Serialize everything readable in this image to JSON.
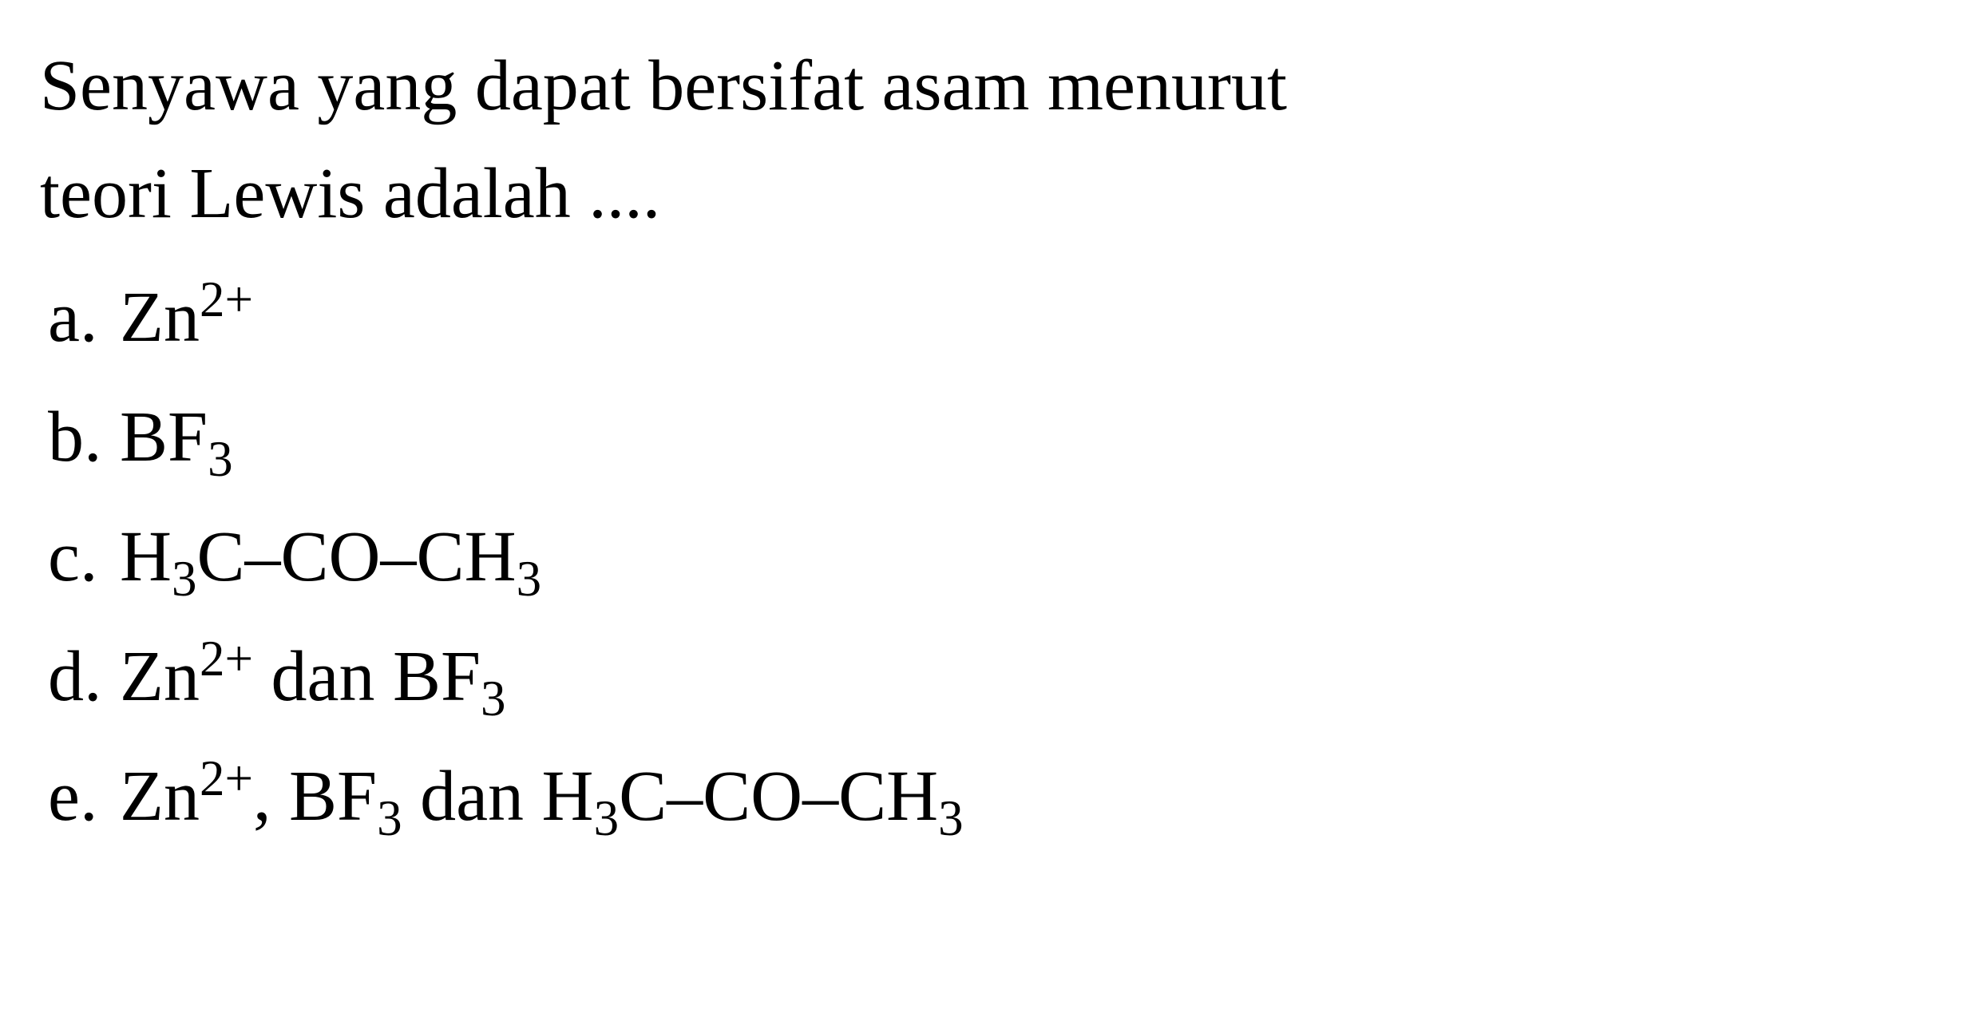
{
  "question": {
    "line1": "Senyawa yang dapat bersifat asam menurut",
    "line2": "teori Lewis adalah ...."
  },
  "options": {
    "a": {
      "letter": "a.",
      "parts": [
        "Zn",
        "2+",
        ""
      ]
    },
    "b": {
      "letter": "b.",
      "parts": [
        "BF",
        "3",
        ""
      ]
    },
    "c": {
      "letter": "c.",
      "prefix": "H",
      "sub1": "3",
      "mid": "C–CO–CH",
      "sub2": "3"
    },
    "d": {
      "letter": "d.",
      "zn": "Zn",
      "znsup": "2+",
      "dan": " dan BF",
      "bfsub": "3"
    },
    "e": {
      "letter": "e.",
      "zn": "Zn",
      "znsup": "2+",
      "comma": ", BF",
      "bfsub": "3",
      "dan": " dan H",
      "hsub": "3",
      "mid": "C–CO–CH",
      "chsub": "3"
    }
  },
  "styles": {
    "background_color": "#ffffff",
    "text_color": "#000000",
    "font_family": "Times New Roman",
    "font_size": 90,
    "line_height": 1.5
  }
}
